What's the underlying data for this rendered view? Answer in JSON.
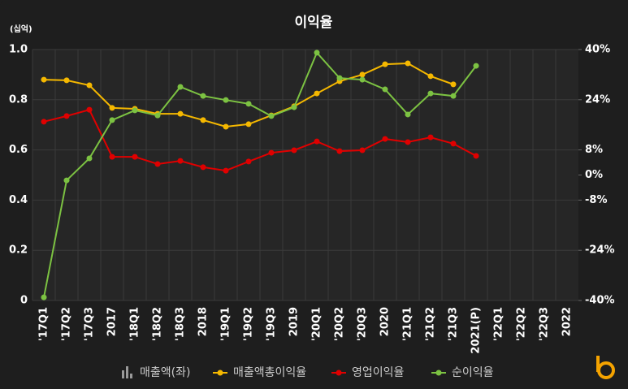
{
  "chart_data": {
    "type": "line",
    "title": "이익율",
    "ylabel": "(십억)",
    "categories": [
      "'17Q1",
      "'17Q2",
      "'17Q3",
      "2017",
      "'18Q1",
      "'18Q2",
      "'18Q3",
      "2018",
      "'19Q1",
      "'19Q2",
      "'19Q3",
      "2019",
      "'20Q1",
      "'20Q2",
      "'20Q3",
      "2020",
      "'21Q1",
      "'21Q2",
      "'21Q3",
      "2021(P)",
      "'22Q1",
      "'22Q2",
      "'22Q3",
      "2022"
    ],
    "ylim": [
      0,
      1.0
    ],
    "yticks": [
      0,
      0.2,
      0.4,
      0.6,
      0.8,
      {
        "value": 1.0,
        "label": "1.0"
      }
    ],
    "y2lim": [
      -40,
      40
    ],
    "y2ticks": [
      {
        "value": -40,
        "label": "-40%"
      },
      {
        "value": -24,
        "label": "-24%"
      },
      {
        "value": -8,
        "label": "-8%"
      },
      {
        "value": 0,
        "label": "0%"
      },
      {
        "value": 8,
        "label": "8%"
      },
      {
        "value": 24,
        "label": "24%"
      },
      {
        "value": 40,
        "label": "40%"
      }
    ],
    "grid": true,
    "legend": "bottom",
    "series": [
      {
        "name": "매출액(좌)",
        "type": "bar",
        "color": "#9a9a9a",
        "values": [
          null,
          null,
          null,
          null,
          null,
          null,
          null,
          null,
          null,
          null,
          null,
          null,
          null,
          null,
          null,
          null,
          null,
          null,
          null,
          null,
          null,
          null,
          null,
          null
        ]
      },
      {
        "name": "매출액총이익율",
        "color": "#f5b800",
        "axis": "y2",
        "values": [
          30.4,
          30.2,
          28.6,
          21.4,
          21.1,
          19.5,
          19.5,
          17.5,
          15.4,
          16.2,
          19.0,
          21.9,
          26.0,
          29.9,
          32.0,
          35.3,
          35.6,
          31.5,
          28.9,
          null,
          null,
          null,
          null,
          null
        ]
      },
      {
        "name": "영업이익율",
        "color": "#e00000",
        "axis": "y2",
        "values": [
          17.0,
          18.8,
          20.8,
          5.8,
          5.8,
          3.5,
          4.5,
          2.5,
          1.4,
          4.3,
          7.1,
          7.9,
          10.7,
          7.6,
          7.9,
          11.5,
          10.5,
          12.0,
          10.0,
          6.1,
          null,
          null,
          null,
          null
        ]
      },
      {
        "name": "순이익율",
        "color": "#7cc242",
        "axis": "y2",
        "values": [
          -39.0,
          -1.7,
          5.3,
          17.5,
          20.6,
          19.0,
          28.1,
          25.2,
          23.9,
          22.7,
          18.8,
          21.6,
          39.0,
          30.9,
          30.4,
          27.3,
          19.3,
          26.0,
          25.2,
          34.8,
          null,
          null,
          null,
          null
        ]
      }
    ]
  }
}
